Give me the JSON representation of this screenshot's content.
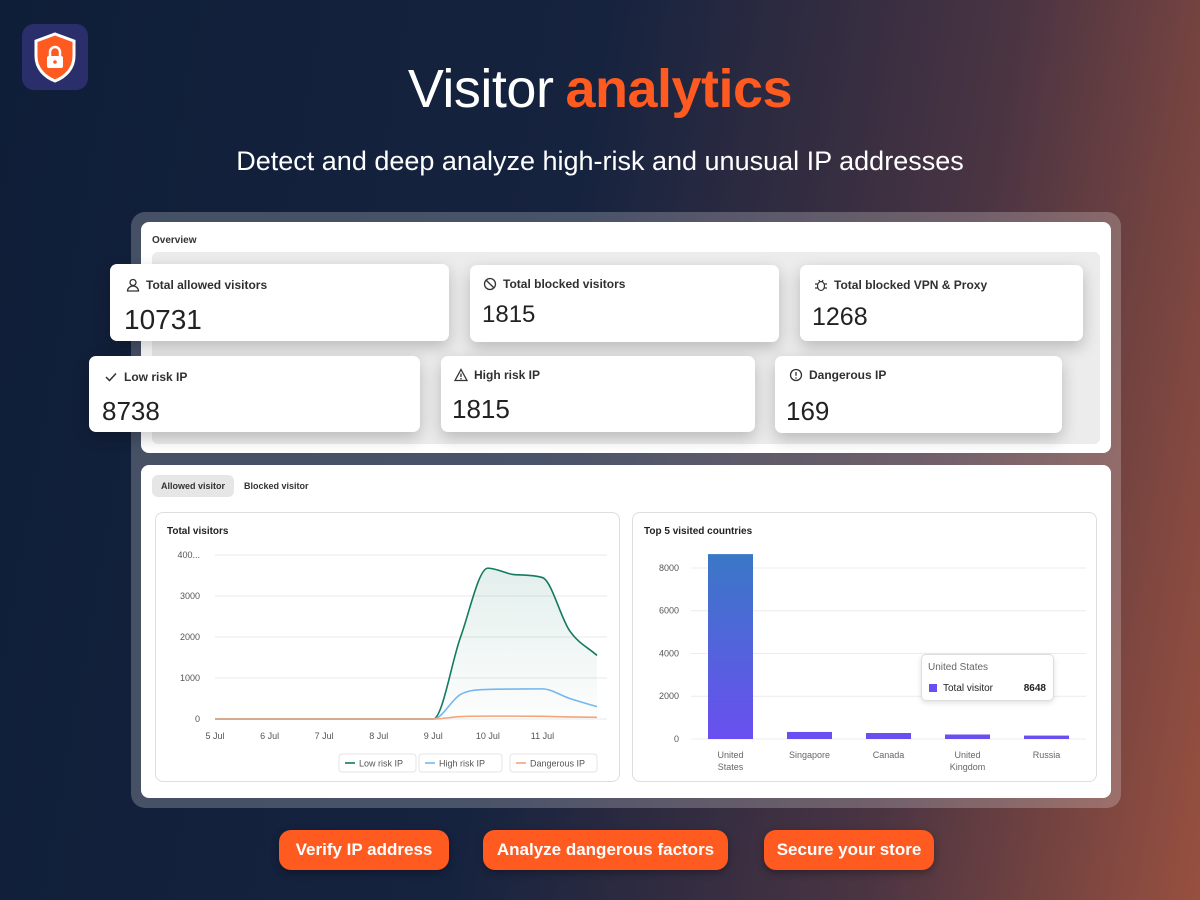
{
  "header": {
    "title": "Visitor",
    "title_highlight": "analytics",
    "subtitle": "Detect and deep analyze high-risk and unusual IP addresses"
  },
  "overview": {
    "title": "Overview",
    "stats": [
      {
        "label": "Total allowed visitors",
        "value": 10731
      },
      {
        "label": "Total blocked visitors",
        "value": 1815
      },
      {
        "label": "Total blocked VPN & Proxy",
        "value": 1268
      },
      {
        "label": "Low risk IP",
        "value": 8738
      },
      {
        "label": "High risk IP",
        "value": 1815
      },
      {
        "label": "Dangerous IP",
        "value": 169
      }
    ]
  },
  "tabs": [
    "Allowed visitor",
    "Blocked visitor"
  ],
  "chart_data": [
    {
      "type": "line",
      "title": "Total visitors",
      "categories": [
        "5 Jul",
        null,
        "6 Jul",
        null,
        "7 Jul",
        null,
        "8 Jul",
        null,
        "9 Jul",
        null,
        "10 Jul",
        null,
        "11 Jul",
        null,
        null
      ],
      "ylim": [
        0,
        4000
      ],
      "yticks": [
        0,
        1000,
        2000,
        3000,
        {
          "value": 4000,
          "label": "400..."
        }
      ],
      "grid": true,
      "series": [
        {
          "name": "Low risk IP",
          "color": "#137a5f",
          "values": [
            0,
            0,
            0,
            0,
            0,
            0,
            0,
            0,
            0,
            2000,
            3680,
            3520,
            3450,
            2150,
            1550
          ]
        },
        {
          "name": "High risk IP",
          "color": "#76b7ef",
          "values": [
            0,
            0,
            0,
            0,
            0,
            0,
            0,
            0,
            0,
            600,
            720,
            730,
            735,
            500,
            300
          ]
        },
        {
          "name": "Dangerous IP",
          "color": "#f4a57a",
          "values": [
            0,
            0,
            0,
            0,
            0,
            0,
            0,
            0,
            0,
            60,
            70,
            70,
            65,
            50,
            40
          ]
        }
      ]
    },
    {
      "type": "bar",
      "title": "Top 5 visited countries",
      "categories": [
        "United States",
        "Singapore",
        "Canada",
        "United Kingdom",
        "Russia"
      ],
      "ylim": [
        0,
        8700
      ],
      "yticks": [
        0,
        2000,
        4000,
        6000,
        8000
      ],
      "grid": true,
      "series": [
        {
          "name": "Total visitor",
          "color": "#6a4ff0",
          "values": [
            8648,
            330,
            280,
            210,
            160
          ]
        }
      ]
    }
  ],
  "features": [
    "Verify IP address",
    "Analyze dangerous factors",
    "Secure your store"
  ]
}
